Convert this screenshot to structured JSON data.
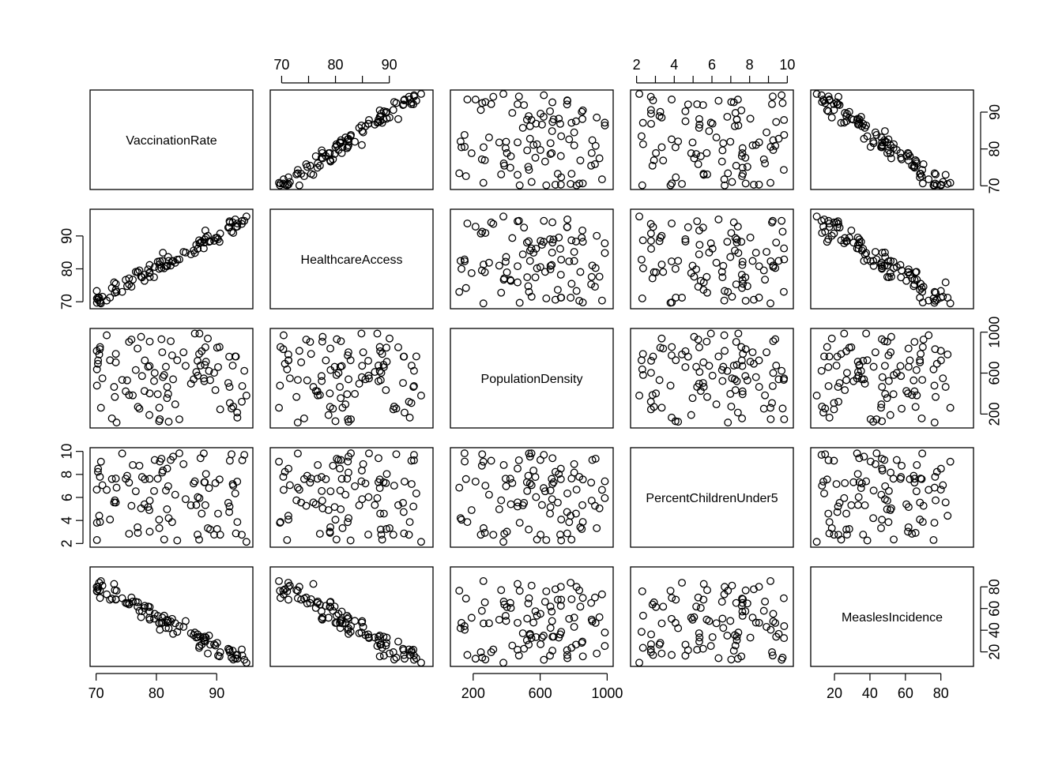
{
  "chart_data": {
    "type": "scatter-matrix",
    "point_marker": "open-circle",
    "point_color": "#000000",
    "n_points": 100,
    "variables": [
      {
        "name": "VaccinationRate",
        "range": [
          70,
          95
        ],
        "ticks": [
          70,
          80,
          90
        ],
        "tick_side": "left-bottom"
      },
      {
        "name": "HealthcareAccess",
        "range": [
          69,
          97
        ],
        "ticks": [
          70,
          80,
          90
        ],
        "tick_side": "top-left"
      },
      {
        "name": "PopulationDensity",
        "range": [
          100,
          1000
        ],
        "ticks": [
          200,
          600,
          1000
        ],
        "tick_side": "bottom-right"
      },
      {
        "name": "PercentChildrenUnder5",
        "range": [
          2,
          10
        ],
        "ticks": [
          2,
          4,
          6,
          8,
          10
        ],
        "tick_side": "top-left"
      },
      {
        "name": "MeaslesIncidence",
        "range": [
          10,
          95
        ],
        "ticks": [
          20,
          40,
          60,
          80
        ],
        "tick_side": "bottom-right"
      }
    ],
    "relationships": [
      {
        "x": "VaccinationRate",
        "y": "HealthcareAccess",
        "trend": "strong positive linear"
      },
      {
        "x": "VaccinationRate",
        "y": "MeaslesIncidence",
        "trend": "strong negative linear"
      },
      {
        "x": "HealthcareAccess",
        "y": "MeaslesIncidence",
        "trend": "strong negative linear"
      },
      {
        "x": "PopulationDensity",
        "y": "others",
        "trend": "no relationship"
      },
      {
        "x": "PercentChildrenUnder5",
        "y": "others",
        "trend": "no relationship"
      }
    ]
  }
}
